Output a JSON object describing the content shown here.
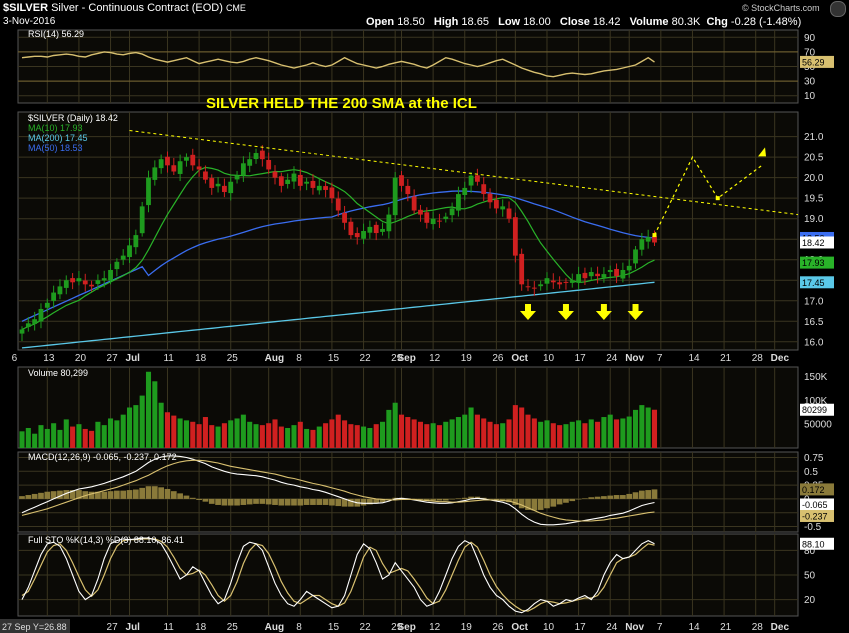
{
  "header": {
    "symbol": "$SILVER",
    "name": "Silver - Continuous Contract (EOD)",
    "exchange": "CME",
    "date": "3-Nov-2016",
    "brand": "© StockCharts.com",
    "open_label": "Open",
    "open": "18.50",
    "high_label": "High",
    "high": "18.65",
    "low_label": "Low",
    "low": "18.00",
    "close_label": "Close",
    "close": "18.42",
    "volume_label": "Volume",
    "volume": "80.3K",
    "chg_label": "Chg",
    "chg": "-0.28 (-1.48%)"
  },
  "colors": {
    "up": "#1e9b1e",
    "down": "#d02020",
    "ma10": "#29b329",
    "ma50": "#3a6df0",
    "ma200": "#5ac8e8",
    "annotation": "#ffff00",
    "indicator": "#d8c070",
    "shade": "#2b2514"
  },
  "annotation": {
    "title": "SILVER HELD THE 200 SMA at the ICL"
  },
  "chart_data": [
    {
      "type": "line",
      "panel": "rsi",
      "label": "RSI(14) 56.29",
      "ylim": [
        0,
        100
      ],
      "yticks": [
        90,
        70,
        50,
        30,
        10
      ],
      "last_value": "56.29",
      "values": [
        62,
        63,
        64,
        64,
        63,
        65,
        66,
        67,
        66,
        64,
        63,
        66,
        68,
        70,
        69,
        67,
        66,
        68,
        69,
        67,
        63,
        60,
        58,
        56,
        58,
        60,
        62,
        58,
        54,
        56,
        58,
        60,
        58,
        56,
        55,
        57,
        60,
        62,
        60,
        58,
        55,
        52,
        50,
        48,
        50,
        52,
        55,
        52,
        50,
        52,
        57,
        62,
        58,
        54,
        52,
        50,
        48,
        50,
        53,
        55,
        57,
        55,
        53,
        50,
        48,
        52,
        57,
        62,
        60,
        57,
        54,
        52,
        50,
        52,
        55,
        58,
        60,
        56,
        52,
        48,
        45,
        42,
        40,
        37,
        36,
        38,
        40,
        41,
        40,
        39,
        40,
        42,
        44,
        45,
        46,
        48,
        50,
        52,
        57,
        62,
        56
      ]
    },
    {
      "type": "candlestick",
      "panel": "price",
      "label": "$SILVER (Daily) 18.42",
      "ylim": [
        15.8,
        21.6
      ],
      "yticks": [
        21.0,
        20.5,
        20.0,
        19.5,
        19.0,
        18.5,
        18.0,
        17.5,
        17.0,
        16.5,
        16.0
      ],
      "last_close": "18.42",
      "ma_labels": [
        "MA(10) 17.93",
        "MA(200) 17.45",
        "MA(50) 18.53"
      ],
      "ma_values": [
        "17.93",
        "17.45",
        "18.53"
      ],
      "x_ticks": [
        "6",
        "13",
        "20",
        "27",
        "Jul",
        "11",
        "18",
        "25",
        "Aug",
        "8",
        "15",
        "22",
        "29",
        "Sep",
        "12",
        "19",
        "26",
        "Oct",
        "10",
        "17",
        "24",
        "Nov",
        "7",
        "14",
        "21",
        "28",
        "Dec"
      ],
      "closes": [
        16.3,
        16.45,
        16.55,
        16.8,
        16.95,
        17.2,
        17.35,
        17.5,
        17.45,
        17.55,
        17.4,
        17.35,
        17.5,
        17.55,
        17.75,
        17.95,
        18.1,
        18.35,
        18.6,
        19.3,
        20.0,
        20.25,
        20.45,
        20.3,
        20.15,
        20.4,
        20.5,
        20.3,
        20.2,
        19.95,
        19.75,
        19.85,
        19.65,
        19.9,
        20.05,
        20.35,
        20.45,
        20.6,
        20.45,
        20.2,
        20.0,
        19.8,
        19.95,
        20.1,
        19.8,
        19.9,
        19.75,
        19.8,
        19.7,
        19.5,
        19.2,
        18.9,
        18.6,
        18.55,
        18.7,
        18.8,
        18.65,
        18.75,
        19.1,
        20.0,
        19.8,
        19.6,
        19.2,
        19.1,
        18.9,
        19.0,
        18.95,
        19.05,
        19.25,
        19.6,
        19.75,
        20.05,
        19.9,
        19.6,
        19.4,
        19.25,
        19.3,
        19.0,
        18.1,
        17.4,
        17.35,
        17.3,
        17.4,
        17.55,
        17.45,
        17.4,
        17.45,
        17.5,
        17.65,
        17.55,
        17.7,
        17.6,
        17.65,
        17.75,
        17.6,
        17.75,
        17.85,
        18.25,
        18.5,
        18.55,
        18.42
      ],
      "volume": {
        "label": "Volume 80,299",
        "yticks": [
          "150K",
          "100K",
          "50000"
        ],
        "last_value": "80299",
        "values": [
          35000,
          42000,
          30000,
          48000,
          40000,
          52000,
          38000,
          60000,
          45000,
          50000,
          40000,
          36000,
          55000,
          48000,
          62000,
          58000,
          70000,
          85000,
          90000,
          110000,
          160000,
          140000,
          95000,
          75000,
          68000,
          62000,
          58000,
          55000,
          50000,
          65000,
          48000,
          45000,
          52000,
          58000,
          62000,
          70000,
          55000,
          50000,
          48000,
          52000,
          60000,
          45000,
          42000,
          48000,
          55000,
          40000,
          38000,
          45000,
          52000,
          60000,
          70000,
          58000,
          50000,
          48000,
          45000,
          42000,
          50000,
          55000,
          80000,
          95000,
          70000,
          65000,
          60000,
          55000,
          50000,
          52000,
          48000,
          55000,
          60000,
          65000,
          70000,
          85000,
          70000,
          62000,
          55000,
          50000,
          52000,
          60000,
          90000,
          85000,
          70000,
          62000,
          55000,
          58000,
          52000,
          48000,
          50000,
          55000,
          58000,
          52000,
          60000,
          55000,
          65000,
          70000,
          60000,
          62000,
          66000,
          80000,
          90000,
          85000,
          80299
        ]
      }
    },
    {
      "type": "line",
      "panel": "macd",
      "label": "MACD(12,26,9) -0.065, -0.237, 0.172",
      "ylim": [
        -0.6,
        0.85
      ],
      "yticks": [
        0.75,
        0.5,
        0.25,
        0.0,
        -0.25,
        -0.5
      ],
      "last_values": [
        "0.172",
        "-0.065",
        "-0.237"
      ],
      "macd": [
        -0.25,
        -0.2,
        -0.15,
        -0.1,
        -0.05,
        0.0,
        0.05,
        0.1,
        0.14,
        0.18,
        0.2,
        0.22,
        0.25,
        0.28,
        0.32,
        0.36,
        0.4,
        0.45,
        0.5,
        0.58,
        0.66,
        0.72,
        0.76,
        0.78,
        0.78,
        0.77,
        0.75,
        0.72,
        0.68,
        0.64,
        0.58,
        0.54,
        0.5,
        0.47,
        0.45,
        0.44,
        0.43,
        0.42,
        0.4,
        0.37,
        0.34,
        0.3,
        0.27,
        0.25,
        0.22,
        0.2,
        0.17,
        0.15,
        0.12,
        0.08,
        0.04,
        0.0,
        -0.04,
        -0.07,
        -0.08,
        -0.08,
        -0.08,
        -0.07,
        -0.04,
        0.0,
        0.01,
        0.0,
        -0.02,
        -0.04,
        -0.06,
        -0.07,
        -0.08,
        -0.08,
        -0.07,
        -0.05,
        -0.03,
        0.0,
        0.01,
        0.0,
        -0.02,
        -0.04,
        -0.06,
        -0.1,
        -0.18,
        -0.28,
        -0.36,
        -0.42,
        -0.46,
        -0.47,
        -0.47,
        -0.46,
        -0.45,
        -0.43,
        -0.41,
        -0.39,
        -0.37,
        -0.35,
        -0.33,
        -0.3,
        -0.28,
        -0.26,
        -0.22,
        -0.17,
        -0.12,
        -0.09,
        -0.065
      ],
      "signal": [
        -0.3,
        -0.27,
        -0.24,
        -0.21,
        -0.18,
        -0.14,
        -0.1,
        -0.06,
        -0.02,
        0.02,
        0.06,
        0.09,
        0.12,
        0.15,
        0.18,
        0.21,
        0.25,
        0.29,
        0.33,
        0.38,
        0.43,
        0.49,
        0.55,
        0.6,
        0.64,
        0.67,
        0.69,
        0.7,
        0.7,
        0.69,
        0.67,
        0.65,
        0.62,
        0.59,
        0.57,
        0.55,
        0.53,
        0.51,
        0.49,
        0.47,
        0.45,
        0.42,
        0.39,
        0.37,
        0.34,
        0.31,
        0.28,
        0.26,
        0.23,
        0.2,
        0.17,
        0.14,
        0.1,
        0.07,
        0.04,
        0.02,
        0.0,
        -0.01,
        -0.02,
        -0.02,
        -0.01,
        -0.01,
        -0.01,
        -0.02,
        -0.03,
        -0.04,
        -0.05,
        -0.05,
        -0.06,
        -0.06,
        -0.05,
        -0.04,
        -0.03,
        -0.02,
        -0.02,
        -0.02,
        -0.03,
        -0.04,
        -0.07,
        -0.11,
        -0.16,
        -0.21,
        -0.26,
        -0.3,
        -0.33,
        -0.36,
        -0.38,
        -0.39,
        -0.4,
        -0.4,
        -0.4,
        -0.39,
        -0.38,
        -0.36,
        -0.35,
        -0.33,
        -0.31,
        -0.29,
        -0.27,
        -0.25,
        -0.237
      ]
    },
    {
      "type": "line",
      "panel": "sto",
      "label": "Full STO %K(14,3) %D(3) 88.10, 86.41",
      "ylim": [
        0,
        100
      ],
      "yticks": [
        80,
        50,
        20
      ],
      "last_value": "88.10",
      "k": [
        20,
        35,
        55,
        75,
        88,
        90,
        85,
        70,
        50,
        30,
        20,
        25,
        45,
        70,
        88,
        92,
        94,
        93,
        94,
        95,
        95,
        93,
        88,
        75,
        60,
        45,
        50,
        60,
        55,
        40,
        25,
        15,
        20,
        40,
        65,
        85,
        90,
        88,
        80,
        60,
        40,
        25,
        15,
        12,
        20,
        30,
        25,
        20,
        15,
        10,
        12,
        25,
        50,
        75,
        88,
        82,
        65,
        45,
        50,
        65,
        55,
        45,
        35,
        20,
        12,
        15,
        30,
        50,
        70,
        85,
        92,
        88,
        70,
        50,
        35,
        25,
        20,
        12,
        6,
        4,
        8,
        15,
        20,
        18,
        12,
        15,
        20,
        18,
        22,
        25,
        20,
        30,
        50,
        65,
        75,
        70,
        72,
        80,
        88,
        92,
        88.1
      ],
      "d": [
        25,
        30,
        45,
        62,
        78,
        86,
        88,
        80,
        65,
        48,
        32,
        24,
        32,
        50,
        70,
        85,
        92,
        93,
        93,
        94,
        94,
        94,
        91,
        84,
        72,
        58,
        50,
        52,
        56,
        50,
        38,
        25,
        18,
        25,
        42,
        64,
        80,
        88,
        86,
        76,
        60,
        42,
        28,
        18,
        15,
        20,
        25,
        25,
        20,
        15,
        12,
        16,
        30,
        50,
        72,
        84,
        80,
        64,
        52,
        55,
        58,
        55,
        45,
        34,
        22,
        15,
        18,
        32,
        50,
        68,
        84,
        90,
        84,
        68,
        50,
        36,
        26,
        18,
        12,
        7,
        6,
        10,
        15,
        18,
        17,
        15,
        16,
        18,
        20,
        22,
        22,
        25,
        35,
        50,
        65,
        70,
        72,
        75,
        82,
        88,
        86.41
      ]
    }
  ],
  "footer": {
    "cursor_readout": "27 Sep Y=26.88",
    "x_ticks": [
      "27",
      "Jul",
      "11",
      "18",
      "25",
      "Aug",
      "8",
      "15",
      "22",
      "29",
      "Sep",
      "12",
      "19",
      "26",
      "Oct",
      "10",
      "17",
      "24",
      "Nov",
      "7",
      "14",
      "21",
      "28",
      "Dec"
    ]
  }
}
